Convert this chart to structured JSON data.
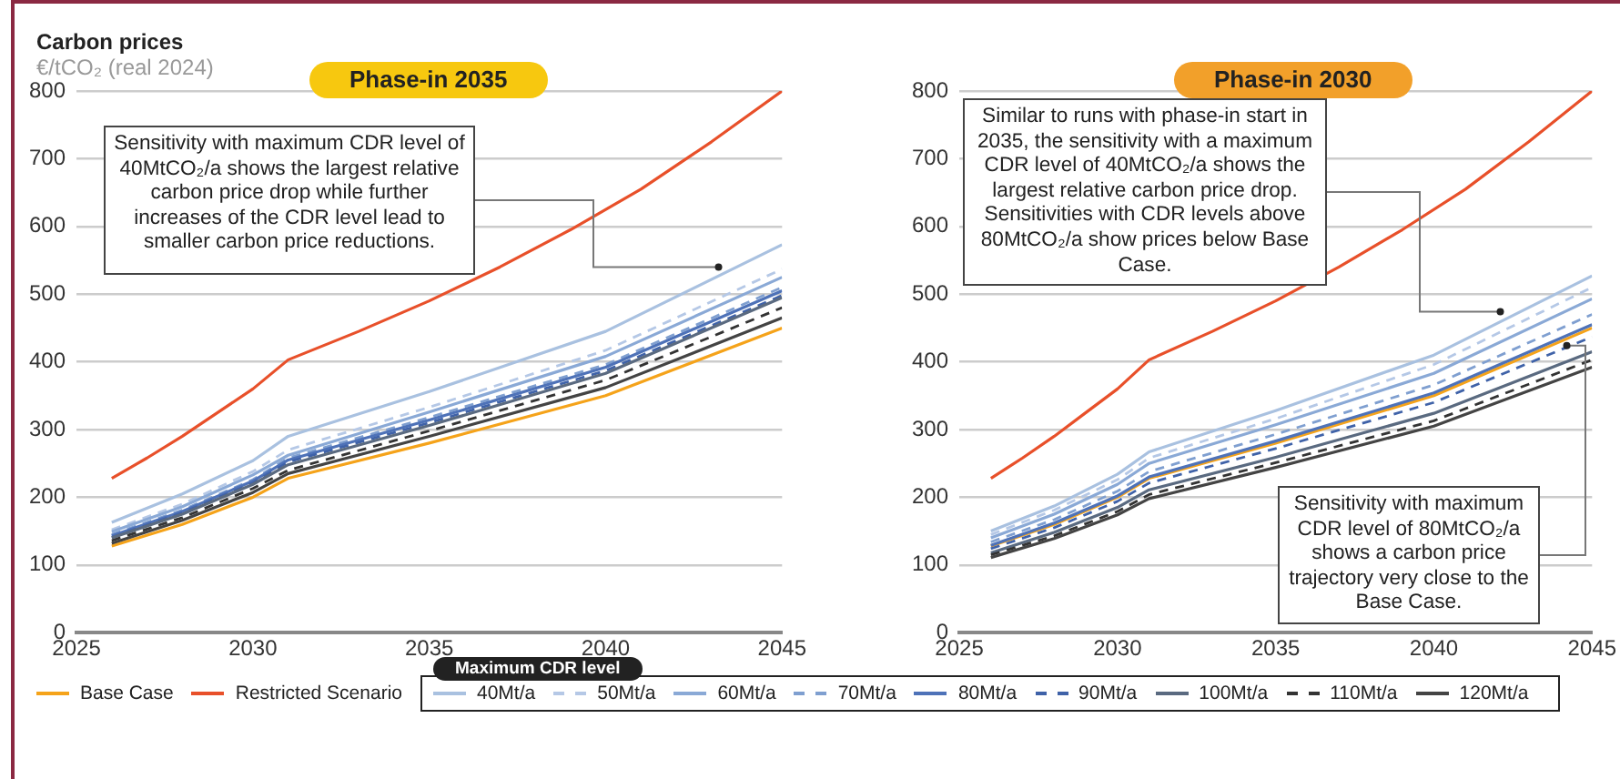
{
  "chart_data": [
    {
      "type": "line",
      "title": "Phase-in 2035",
      "ylabel": "Carbon prices",
      "subtitle": "€/tCO₂ (real 2024)",
      "x": [
        2026,
        2028,
        2030,
        2031,
        2035,
        2040,
        2045
      ],
      "xlim": [
        2025,
        2045
      ],
      "xticks": [
        2025,
        2030,
        2035,
        2040,
        2045
      ],
      "ylim": [
        0,
        800
      ],
      "yticks": [
        0,
        100,
        200,
        300,
        400,
        500,
        600,
        700,
        800
      ],
      "grid": "y",
      "legend": "bottom",
      "legend_title": "Maximum CDR level",
      "marker": "none",
      "annotations": [
        {
          "text": "Sensitivity with maximum CDR level of 40MtCO₂/a shows the largest relative carbon price drop while further increases of the CDR level lead to smaller carbon price reductions.",
          "x": 2043.2,
          "y": 540
        }
      ],
      "series": [
        {
          "name": "Base Case",
          "color": "#f5a31a",
          "values": [
            128,
            160,
            200,
            228,
            280,
            350,
            450
          ]
        },
        {
          "name": "Restricted Scenario",
          "color": "#e8502a",
          "x": [
            2026,
            2027,
            2028,
            2029,
            2030,
            2031,
            2033,
            2035,
            2037,
            2039,
            2041,
            2043,
            2045
          ],
          "values": [
            228,
            258,
            290,
            325,
            360,
            403,
            445,
            490,
            540,
            595,
            655,
            725,
            800
          ]
        },
        {
          "name": "40Mt/a",
          "color": "#a9c1e0",
          "values": [
            163,
            205,
            254,
            290,
            356,
            445,
            573
          ]
        },
        {
          "name": "50Mt/a",
          "color": "#b5c8e6",
          "line_style": "dashed",
          "values": [
            152,
            190,
            238,
            270,
            333,
            417,
            537
          ]
        },
        {
          "name": "60Mt/a",
          "color": "#8aa9d6",
          "values": [
            149,
            186,
            233,
            262,
            326,
            408,
            525
          ]
        },
        {
          "name": "70Mt/a",
          "color": "#7f9fd0",
          "line_style": "dashed",
          "values": [
            145,
            181,
            226,
            258,
            318,
            396,
            510
          ]
        },
        {
          "name": "80Mt/a",
          "color": "#4e72b8",
          "values": [
            143,
            179,
            224,
            255,
            314,
            392,
            505
          ]
        },
        {
          "name": "90Mt/a",
          "color": "#3f62a8",
          "line_style": "dashed",
          "values": [
            141,
            177,
            221,
            252,
            310,
            387,
            498
          ]
        },
        {
          "name": "100Mt/a",
          "color": "#5a6a80",
          "values": [
            140,
            175,
            219,
            248,
            306,
            383,
            495
          ]
        },
        {
          "name": "110Mt/a",
          "color": "#333333",
          "line_style": "dashed",
          "values": [
            136,
            170,
            213,
            240,
            298,
            373,
            480
          ]
        },
        {
          "name": "120Mt/a",
          "color": "#444444",
          "values": [
            132,
            166,
            207,
            235,
            290,
            362,
            465
          ]
        }
      ]
    },
    {
      "type": "line",
      "title": "Phase-in 2030",
      "x": [
        2026,
        2028,
        2030,
        2031,
        2035,
        2040,
        2045
      ],
      "xlim": [
        2025,
        2045
      ],
      "xticks": [
        2025,
        2030,
        2035,
        2040,
        2045
      ],
      "ylim": [
        0,
        800
      ],
      "yticks": [
        0,
        100,
        200,
        300,
        400,
        500,
        600,
        700,
        800
      ],
      "grid": "y",
      "marker": "none",
      "annotations": [
        {
          "text": "Similar to runs with phase-in start in 2035, the sensitivity with a maximum CDR level of 40MtCO₂/a shows the largest relative carbon price drop. Sensitivities with CDR levels above 80MtCO₂/a show prices below Base Case.",
          "x": 2042.1,
          "y": 474
        },
        {
          "text": "Sensitivity with maximum CDR level of 80MtCO₂/a shows a carbon price trajectory very close to the Base Case.",
          "x": 2044.2,
          "y": 424
        }
      ],
      "series": [
        {
          "color": "#f5a31a",
          "values": [
            128,
            160,
            200,
            228,
            280,
            350,
            450
          ]
        },
        {
          "color": "#e8502a",
          "x": [
            2026,
            2027,
            2028,
            2029,
            2030,
            2031,
            2033,
            2035,
            2037,
            2039,
            2041,
            2043,
            2045
          ],
          "values": [
            228,
            258,
            290,
            325,
            360,
            403,
            445,
            490,
            540,
            595,
            655,
            725,
            800
          ]
        },
        {
          "color": "#a9c1e0",
          "values": [
            150,
            187,
            234,
            267,
            328,
            410,
            527
          ]
        },
        {
          "color": "#b5c8e6",
          "line_style": "dashed",
          "values": [
            145,
            181,
            226,
            258,
            316,
            396,
            510
          ]
        },
        {
          "color": "#8aa9d6",
          "values": [
            140,
            175,
            219,
            250,
            307,
            383,
            493
          ]
        },
        {
          "color": "#7f9fd0",
          "line_style": "dashed",
          "values": [
            134,
            167,
            209,
            238,
            293,
            366,
            470
          ]
        },
        {
          "color": "#4e72b8",
          "values": [
            129,
            162,
            202,
            230,
            283,
            354,
            455
          ]
        },
        {
          "color": "#3f62a8",
          "line_style": "dashed",
          "values": [
            124,
            155,
            194,
            221,
            272,
            340,
            437
          ]
        },
        {
          "color": "#5a6a80",
          "values": [
            118,
            148,
            185,
            211,
            259,
            324,
            415
          ]
        },
        {
          "color": "#333333",
          "line_style": "dashed",
          "values": [
            115,
            143,
            179,
            204,
            251,
            313,
            403
          ]
        },
        {
          "color": "#444444",
          "values": [
            111,
            139,
            174,
            198,
            244,
            305,
            392
          ]
        }
      ]
    }
  ]
}
